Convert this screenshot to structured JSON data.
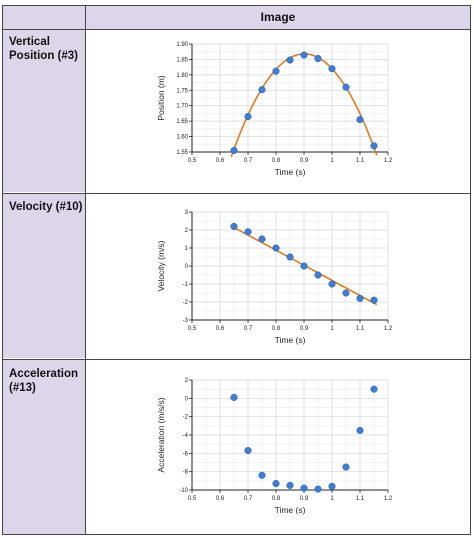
{
  "table": {
    "header": "Image",
    "rows": [
      {
        "label": "Vertical Position (#3)"
      },
      {
        "label": "Velocity (#10)"
      },
      {
        "label": "Acceleration (#13)"
      }
    ]
  },
  "chart_data": [
    {
      "type": "scatter",
      "xlabel": "Time (s)",
      "ylabel": "Position (m)",
      "xlim": [
        0.5,
        1.2
      ],
      "ylim": [
        1.55,
        1.9
      ],
      "xticks": [
        "0.5",
        "0.6",
        "0.7",
        "0.8",
        "0.9",
        "1",
        "1.1",
        "1.2"
      ],
      "yticks": [
        "1.55",
        "1.60",
        "1.65",
        "1.70",
        "1.75",
        "1.80",
        "1.85",
        "1.90"
      ],
      "grid": true,
      "points_color": "#3b7dd8",
      "fit_color": "#e07b1a",
      "x": [
        0.65,
        0.7,
        0.75,
        0.8,
        0.85,
        0.9,
        0.95,
        1.0,
        1.05,
        1.1,
        1.15
      ],
      "y": [
        1.555,
        1.665,
        1.752,
        1.812,
        1.848,
        1.864,
        1.853,
        1.82,
        1.76,
        1.655,
        1.57
      ],
      "fit": {
        "kind": "quadratic",
        "a": -4.9,
        "b": 8.83,
        "c": -2.11,
        "xrange": [
          0.64,
          1.16
        ]
      }
    },
    {
      "type": "scatter",
      "xlabel": "Time (s)",
      "ylabel": "Velocity (m/s)",
      "xlim": [
        0.5,
        1.2
      ],
      "ylim": [
        -3,
        3
      ],
      "xticks": [
        "0.5",
        "0.6",
        "0.7",
        "0.8",
        "0.9",
        "1",
        "1.1",
        "1.2"
      ],
      "yticks": [
        "-3",
        "-2",
        "-1",
        "0",
        "1",
        "2",
        "3"
      ],
      "grid": true,
      "points_color": "#3b7dd8",
      "fit_color": "#e07b1a",
      "x": [
        0.65,
        0.7,
        0.75,
        0.8,
        0.85,
        0.9,
        0.95,
        1.0,
        1.05,
        1.1,
        1.15
      ],
      "y": [
        2.2,
        1.9,
        1.5,
        1.0,
        0.5,
        0.0,
        -0.5,
        -1.0,
        -1.5,
        -1.8,
        -1.9
      ],
      "fit": {
        "kind": "linear",
        "m": -8.4,
        "b": 7.6,
        "xrange": [
          0.64,
          1.16
        ]
      }
    },
    {
      "type": "scatter",
      "xlabel": "Time (s)",
      "ylabel": "Acceleration (m/s/s)",
      "xlim": [
        0.5,
        1.2
      ],
      "ylim": [
        -10,
        2
      ],
      "xticks": [
        "0.5",
        "0.6",
        "0.7",
        "0.8",
        "0.9",
        "1",
        "1.1",
        "1.2"
      ],
      "yticks": [
        "-10",
        "-8",
        "-6",
        "-4",
        "-2",
        "0",
        "2"
      ],
      "grid": true,
      "points_color": "#3b7dd8",
      "x": [
        0.65,
        0.7,
        0.75,
        0.8,
        0.85,
        0.9,
        0.95,
        1.0,
        1.05,
        1.1,
        1.15
      ],
      "y": [
        0.1,
        -5.7,
        -8.4,
        -9.3,
        -9.5,
        -9.8,
        -9.9,
        -9.6,
        -7.5,
        -3.5,
        1.0
      ]
    }
  ]
}
